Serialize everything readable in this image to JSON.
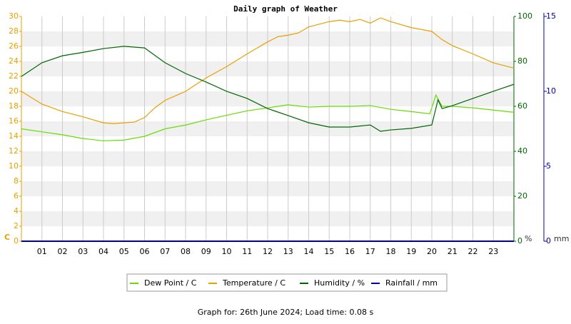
{
  "chart_data": {
    "type": "line",
    "title": "Daily graph of Weather",
    "footer": "Graph for: 26th June 2024; Load time: 0.08 s",
    "y_label": "C",
    "y2_label": "%",
    "y3_label": "mm",
    "xlim": [
      0,
      24
    ],
    "xticks": [
      {
        "value": 1,
        "label": "01"
      },
      {
        "value": 2,
        "label": "02"
      },
      {
        "value": 3,
        "label": "03"
      },
      {
        "value": 4,
        "label": "04"
      },
      {
        "value": 5,
        "label": "05"
      },
      {
        "value": 6,
        "label": "06"
      },
      {
        "value": 7,
        "label": "07"
      },
      {
        "value": 8,
        "label": "08"
      },
      {
        "value": 9,
        "label": "09"
      },
      10,
      11,
      12,
      13,
      14,
      15,
      16,
      17,
      18,
      19,
      20,
      21,
      22,
      23
    ],
    "ylim": [
      0,
      30
    ],
    "yticks": [
      0,
      2,
      4,
      6,
      8,
      10,
      12,
      14,
      16,
      18,
      20,
      22,
      24,
      26,
      28,
      30
    ],
    "y2lim": [
      0,
      100
    ],
    "y2ticks": [
      0,
      20,
      40,
      60,
      80,
      100
    ],
    "y3lim": [
      0,
      15
    ],
    "y3ticks": [
      0,
      5,
      10,
      15
    ],
    "grid": true,
    "series": [
      {
        "name": "Dew Point / C",
        "color": "#66dd00",
        "axis": "y",
        "x": [
          0,
          1,
          2,
          3,
          4,
          5,
          6,
          7,
          8,
          9,
          10,
          11,
          12,
          13,
          14,
          15,
          16,
          17,
          18,
          19,
          19.9,
          20.2,
          20.5,
          21,
          22,
          23,
          24
        ],
        "values": [
          15,
          14.6,
          14.2,
          13.7,
          13.4,
          13.5,
          14,
          15,
          15.5,
          16.2,
          16.8,
          17.4,
          17.8,
          18.2,
          17.9,
          18,
          18,
          18.1,
          17.6,
          17.3,
          17,
          19.5,
          18,
          18,
          17.8,
          17.5,
          17.2
        ]
      },
      {
        "name": "Temperature / C",
        "color": "#e8a000",
        "axis": "y",
        "x": [
          0,
          1,
          2,
          3,
          4,
          4.5,
          5,
          5.5,
          6,
          6.5,
          7,
          8,
          9,
          10,
          11,
          12,
          12.5,
          13,
          13.5,
          14,
          15,
          15.5,
          16,
          16.5,
          17,
          17.5,
          18,
          19,
          20,
          20.5,
          21,
          22,
          23,
          24
        ],
        "values": [
          20,
          18.3,
          17.3,
          16.6,
          15.8,
          15.7,
          15.8,
          15.9,
          16.5,
          17.8,
          18.8,
          20,
          21.8,
          23.3,
          25,
          26.6,
          27.3,
          27.5,
          27.8,
          28.6,
          29.3,
          29.5,
          29.3,
          29.6,
          29.1,
          29.8,
          29.3,
          28.5,
          28,
          26.9,
          26.1,
          25,
          23.8,
          23.1
        ]
      },
      {
        "name": "Humidity / %",
        "color": "#006600",
        "axis": "y2",
        "x": [
          0,
          1,
          2,
          3,
          4,
          5,
          6,
          7,
          8,
          9,
          10,
          11,
          12,
          13,
          14,
          15,
          16,
          17,
          17.5,
          18,
          19,
          20,
          20.3,
          20.5,
          21,
          22,
          23,
          24
        ],
        "values": [
          73.3,
          79.4,
          82.5,
          84,
          85.7,
          86.7,
          86,
          79.4,
          74.6,
          70.8,
          66.7,
          63.5,
          59,
          55.9,
          52.7,
          50.8,
          50.8,
          51.7,
          48.9,
          49.5,
          50.2,
          51.7,
          62.9,
          59,
          60.3,
          63.5,
          66.7,
          69.8
        ]
      },
      {
        "name": "Rainfall / mm",
        "color": "#0000aa",
        "axis": "y3",
        "x": [
          0,
          24
        ],
        "values": [
          0,
          0
        ]
      }
    ]
  }
}
